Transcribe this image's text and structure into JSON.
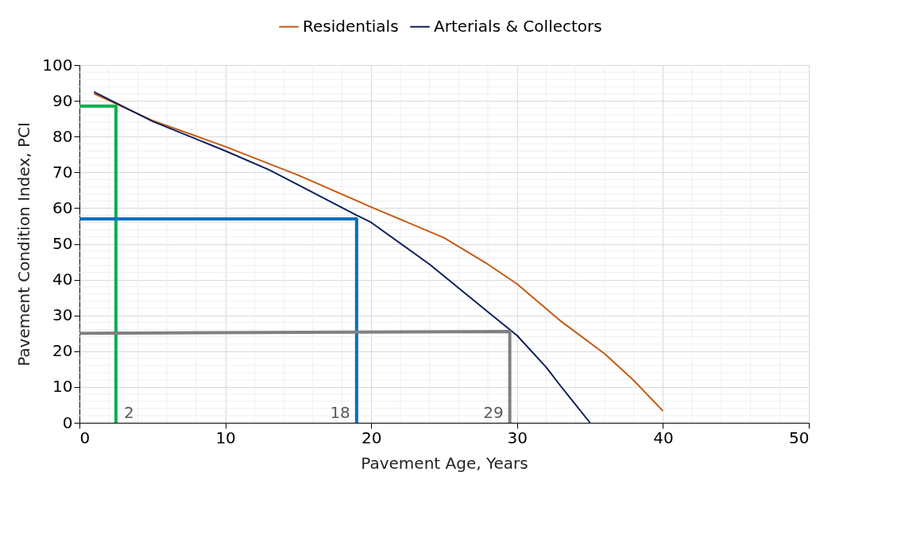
{
  "chart_data": {
    "type": "line",
    "xlabel": "Pavement Age, Years",
    "ylabel": "Pavement Condition Index, PCI",
    "xlim": [
      0,
      50
    ],
    "xticks": [
      0,
      10,
      20,
      30,
      40,
      50
    ],
    "ylim": [
      0,
      100
    ],
    "yticks": [
      0,
      10,
      20,
      30,
      40,
      50,
      60,
      70,
      80,
      90,
      100
    ],
    "grid": true,
    "legend": "top",
    "series": [
      {
        "name": "Residentials",
        "color": "#c55a11",
        "x": [
          1,
          5,
          10,
          15,
          20,
          25,
          28,
          30,
          33,
          36,
          38,
          40
        ],
        "values": [
          92,
          84.5,
          77.2,
          69.2,
          60.3,
          51.7,
          44.3,
          38.8,
          28.4,
          19.3,
          11.8,
          3.3
        ]
      },
      {
        "name": "Arterials & Collectors",
        "color": "#0d1f5c",
        "x": [
          1,
          5,
          10,
          13,
          15,
          19,
          20,
          24,
          28,
          30,
          32,
          33,
          35
        ],
        "values": [
          92.5,
          84.3,
          76,
          70.7,
          66.5,
          58,
          56,
          44.3,
          31,
          24.4,
          15.5,
          10.2,
          0
        ]
      },
      {
        "color": "#00b050",
        "x": [
          0,
          2.5,
          2.5
        ],
        "values": [
          88.5,
          88.5,
          0
        ]
      },
      {
        "color": "#0070c0",
        "x": [
          0,
          19,
          19
        ],
        "values": [
          57,
          57,
          0
        ]
      },
      {
        "color": "#808080",
        "x": [
          0,
          29.5,
          29.5
        ],
        "values": [
          25,
          25.5,
          0
        ]
      }
    ],
    "annotations": [
      "2",
      "18",
      "29"
    ]
  }
}
